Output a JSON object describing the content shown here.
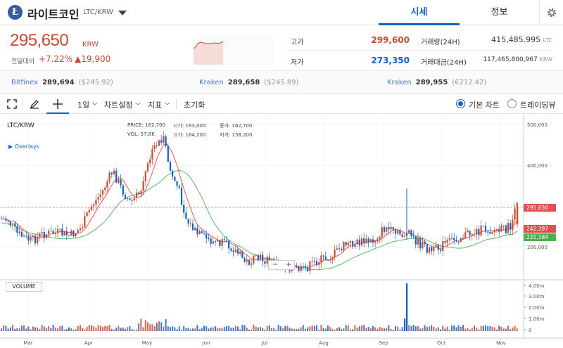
{
  "header": {
    "coin_logo": "Ł",
    "coin_name": "라이트코인",
    "coin_pair": "LTC/KRW",
    "tabs": [
      {
        "label": "시세"
      },
      {
        "label": "정보"
      }
    ]
  },
  "quote": {
    "price": "295,650",
    "unit": "KRW",
    "change_label": "전일대비",
    "change_rate": "+7.22%",
    "change_amount": "▲19,900",
    "high_label": "고가",
    "high_value": "299,600",
    "low_label": "저가",
    "low_value": "273,350",
    "volume_label": "거래량(24H)",
    "volume_value": "415,485.995",
    "volume_unit": "LTC",
    "turnover_label": "거래대금(24H)",
    "turnover_value": "117,465,800,967",
    "turnover_unit": "KRW"
  },
  "exchanges": [
    {
      "name": "Bitfinex",
      "price": "289,694",
      "foreign": "($245.92)"
    },
    {
      "name": "Kraken",
      "price": "289,658",
      "foreign": "($245.89)"
    },
    {
      "name": "Kraken",
      "price": "289,955",
      "foreign": "(€212.42)"
    }
  ],
  "toolbar": {
    "interval": "1일",
    "chart_settings": "차트설정",
    "indicators": "지표",
    "reset": "초기화",
    "basic_chart": "기본 차트",
    "trading_view": "트레이딩뷰"
  },
  "chart": {
    "title": "LTC/KRW",
    "overlays": "Overlays",
    "ohlc": {
      "price_label": "PRICE:",
      "price": "162,700",
      "vol_label": "VOL:",
      "vol": "57.8K",
      "open_label": "시가:",
      "open": "163,000",
      "high_label": "고가:",
      "high": "164,200",
      "close_label": "종가:",
      "close": "162,700",
      "low_label": "저가:",
      "low": "158,200"
    },
    "volume_label": "VOLUME",
    "price_axis": [
      "500,000",
      "400,000",
      "200,000"
    ],
    "volume_axis": [
      "4.00m",
      "3.00m",
      "2.00m",
      "1.00m",
      "0"
    ],
    "month_labels": [
      "Mar",
      "Apr",
      "May",
      "Jun",
      "Jul",
      "Aug",
      "Sep",
      "Oct",
      "Nov"
    ],
    "tags": {
      "last": "295,650",
      "ma_short": "242,397",
      "ma_long": "221,184"
    },
    "zoom_minus": "−",
    "zoom_plus": "+"
  },
  "colors": {
    "up": "#c84a31",
    "down": "#1261c4",
    "accent": "#1261c4",
    "ma_short": "#e55a4f",
    "ma_long": "#5cb85c"
  }
}
